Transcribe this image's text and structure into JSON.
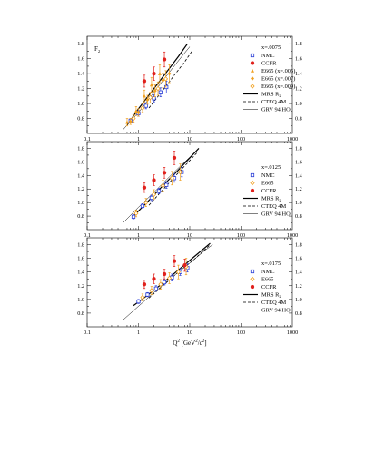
{
  "chart_data": [
    {
      "type": "scatter",
      "panel_title": "F",
      "panel_title_sub": "2",
      "xscale": "log",
      "xlim": [
        0.1,
        1000
      ],
      "ylim": [
        0.6,
        1.9
      ],
      "x_ticks": [
        "0.1",
        "1",
        "10",
        "100",
        "1000"
      ],
      "y_ticks": [
        "0.8",
        "1.0",
        "1.2",
        "1.4",
        "1.6",
        "1.8"
      ],
      "legend_header": "x=.0075",
      "series": [
        {
          "name": "NMC",
          "marker": "open-square",
          "color": "#2b3fd6",
          "points": [
            [
              0.7,
              0.77,
              0.03
            ],
            [
              1.0,
              0.87,
              0.04
            ],
            [
              1.4,
              0.97,
              0.04
            ],
            [
              2.0,
              1.07,
              0.05
            ],
            [
              2.7,
              1.15,
              0.06
            ],
            [
              3.5,
              1.22,
              0.08
            ]
          ]
        },
        {
          "name": "CCFR",
          "marker": "filled-circle",
          "color": "#e0201b",
          "points": [
            [
              1.3,
              1.3,
              0.08
            ],
            [
              2.0,
              1.4,
              0.09
            ],
            [
              3.2,
              1.59,
              0.1
            ]
          ]
        },
        {
          "name": "E665 (x=.005)",
          "marker": "filled-triangle",
          "color": "#f0a020",
          "points": [
            [
              0.6,
              0.75,
              0.05
            ],
            [
              0.9,
              0.9,
              0.06
            ],
            [
              1.3,
              1.1,
              0.08
            ],
            [
              1.8,
              1.25,
              0.1
            ],
            [
              2.6,
              1.4,
              0.12
            ]
          ]
        },
        {
          "name": "E665 (x=.007)",
          "marker": "filled-diamond",
          "color": "#f0a020",
          "points": [
            [
              0.7,
              0.76,
              0.04
            ],
            [
              1.0,
              0.88,
              0.05
            ],
            [
              1.5,
              1.05,
              0.06
            ],
            [
              2.1,
              1.17,
              0.08
            ],
            [
              3.0,
              1.31,
              0.1
            ],
            [
              4.0,
              1.4,
              0.12
            ]
          ]
        },
        {
          "name": "E665 (x=.009)",
          "marker": "open-diamond",
          "color": "#f0a020",
          "points": [
            [
              0.8,
              0.8,
              0.05
            ],
            [
              1.2,
              0.94,
              0.06
            ],
            [
              1.7,
              1.08,
              0.07
            ],
            [
              2.4,
              1.2,
              0.09
            ],
            [
              3.4,
              1.33,
              0.11
            ]
          ]
        }
      ],
      "curves": [
        {
          "name": "MRS R",
          "name_sub": "2",
          "style": "solid",
          "width": 1.2,
          "points": [
            [
              0.6,
              0.71
            ],
            [
              1,
              0.93
            ],
            [
              2,
              1.2
            ],
            [
              4,
              1.47
            ],
            [
              6,
              1.63
            ],
            [
              9,
              1.8
            ]
          ]
        },
        {
          "name": "CTEQ 4M",
          "style": "dash",
          "width": 0.8,
          "points": [
            [
              1.6,
              0.94
            ],
            [
              3,
              1.18
            ],
            [
              5,
              1.38
            ],
            [
              8,
              1.56
            ],
            [
              11,
              1.7
            ]
          ]
        },
        {
          "name": "GRV 94 HO",
          "style": "thin",
          "width": 0.5,
          "points": [
            [
              0.5,
              0.65
            ],
            [
              1,
              0.88
            ],
            [
              2,
              1.15
            ],
            [
              4,
              1.42
            ],
            [
              7,
              1.63
            ],
            [
              10,
              1.76
            ]
          ]
        }
      ]
    },
    {
      "type": "scatter",
      "xscale": "log",
      "xlim": [
        0.1,
        1000
      ],
      "ylim": [
        0.6,
        1.9
      ],
      "x_ticks": [
        "0.1",
        "1",
        "10",
        "100",
        "1000"
      ],
      "y_ticks": [
        "0.8",
        "1.0",
        "1.2",
        "1.4",
        "1.6",
        "1.8"
      ],
      "legend_header": "x=.0125",
      "series": [
        {
          "name": "NMC",
          "marker": "open-square",
          "color": "#2b3fd6",
          "points": [
            [
              0.8,
              0.79,
              0.03
            ],
            [
              1.2,
              0.95,
              0.03
            ],
            [
              1.8,
              1.07,
              0.04
            ],
            [
              2.5,
              1.17,
              0.04
            ],
            [
              3.5,
              1.26,
              0.05
            ],
            [
              5.0,
              1.36,
              0.06
            ],
            [
              7.0,
              1.45,
              0.07
            ]
          ]
        },
        {
          "name": "E665",
          "marker": "open-diamond",
          "color": "#f0a020",
          "points": [
            [
              0.9,
              0.84,
              0.05
            ],
            [
              1.4,
              1.0,
              0.06
            ],
            [
              2.0,
              1.12,
              0.07
            ],
            [
              3.0,
              1.25,
              0.08
            ],
            [
              4.5,
              1.36,
              0.1
            ],
            [
              6.5,
              1.45,
              0.12
            ]
          ]
        },
        {
          "name": "CCFR",
          "marker": "filled-circle",
          "color": "#e0201b",
          "points": [
            [
              1.3,
              1.22,
              0.07
            ],
            [
              2.0,
              1.33,
              0.08
            ],
            [
              3.2,
              1.44,
              0.08
            ],
            [
              5.0,
              1.66,
              0.1
            ]
          ]
        }
      ],
      "curves": [
        {
          "name": "MRS R",
          "name_sub": "2",
          "style": "solid",
          "width": 1.2,
          "points": [
            [
              0.8,
              0.8
            ],
            [
              1.5,
              1.01
            ],
            [
              3,
              1.25
            ],
            [
              6,
              1.48
            ],
            [
              10,
              1.66
            ],
            [
              15,
              1.8
            ]
          ]
        },
        {
          "name": "CTEQ 4M",
          "style": "dash",
          "width": 0.8,
          "points": [
            [
              1.6,
              0.96
            ],
            [
              3,
              1.19
            ],
            [
              6,
              1.44
            ],
            [
              10,
              1.62
            ],
            [
              14,
              1.74
            ]
          ]
        },
        {
          "name": "GRV 94 HO",
          "style": "thin",
          "width": 0.5,
          "points": [
            [
              0.5,
              0.7
            ],
            [
              1,
              0.93
            ],
            [
              2,
              1.15
            ],
            [
              4,
              1.38
            ],
            [
              8,
              1.6
            ],
            [
              14,
              1.77
            ]
          ]
        }
      ]
    },
    {
      "type": "scatter",
      "xscale": "log",
      "xlim": [
        0.1,
        1000
      ],
      "ylim": [
        0.6,
        1.9
      ],
      "x_ticks": [
        "0.1",
        "1",
        "10",
        "100",
        "1000"
      ],
      "y_ticks": [
        "0.8",
        "1.0",
        "1.2",
        "1.4",
        "1.6",
        "1.8"
      ],
      "xlabel": "Q",
      "xlabel_sup": "2",
      "xlabel_rest": " [GeV",
      "xlabel_sup2": "2",
      "xlabel_rest2": "/c",
      "xlabel_sup3": "2",
      "xlabel_end": "]",
      "legend_header": "x=.0175",
      "series": [
        {
          "name": "NMC",
          "marker": "open-square",
          "color": "#2b3fd6",
          "points": [
            [
              1.0,
              0.97,
              0.03
            ],
            [
              1.5,
              1.07,
              0.03
            ],
            [
              2.2,
              1.16,
              0.04
            ],
            [
              3.2,
              1.25,
              0.04
            ],
            [
              4.5,
              1.32,
              0.05
            ],
            [
              6.5,
              1.4,
              0.05
            ],
            [
              9.0,
              1.46,
              0.06
            ]
          ]
        },
        {
          "name": "E665",
          "marker": "open-diamond",
          "color": "#f0a020",
          "points": [
            [
              1.2,
              1.03,
              0.05
            ],
            [
              1.8,
              1.13,
              0.06
            ],
            [
              2.7,
              1.22,
              0.07
            ],
            [
              4.0,
              1.31,
              0.08
            ],
            [
              6.0,
              1.4,
              0.1
            ],
            [
              8.5,
              1.48,
              0.12
            ]
          ]
        },
        {
          "name": "CCFR",
          "marker": "filled-circle",
          "color": "#e0201b",
          "points": [
            [
              1.3,
              1.22,
              0.06
            ],
            [
              2.0,
              1.3,
              0.07
            ],
            [
              3.2,
              1.37,
              0.07
            ],
            [
              5.0,
              1.56,
              0.08
            ],
            [
              8.0,
              1.5,
              0.09
            ]
          ]
        }
      ],
      "curves": [
        {
          "name": "MRS R",
          "name_sub": "2",
          "style": "solid",
          "width": 1.2,
          "points": [
            [
              0.8,
              0.91
            ],
            [
              1.5,
              1.06
            ],
            [
              3,
              1.24
            ],
            [
              6,
              1.43
            ],
            [
              12,
              1.62
            ],
            [
              25,
              1.82
            ]
          ]
        },
        {
          "name": "CTEQ 4M",
          "style": "dash",
          "width": 0.8,
          "points": [
            [
              1.6,
              1.02
            ],
            [
              3,
              1.2
            ],
            [
              6,
              1.4
            ],
            [
              12,
              1.58
            ],
            [
              25,
              1.8
            ]
          ]
        },
        {
          "name": "GRV 94 HO",
          "style": "thin",
          "width": 0.5,
          "points": [
            [
              0.5,
              0.7
            ],
            [
              1,
              0.9
            ],
            [
              2,
              1.1
            ],
            [
              5,
              1.35
            ],
            [
              10,
              1.53
            ],
            [
              20,
              1.72
            ],
            [
              28,
              1.8
            ]
          ]
        }
      ]
    }
  ]
}
